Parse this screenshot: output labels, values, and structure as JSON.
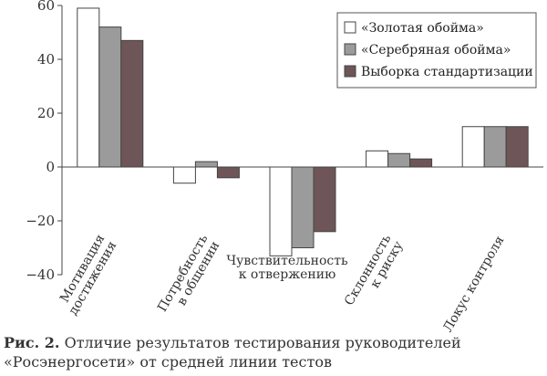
{
  "chart_data": {
    "type": "bar",
    "categories": [
      [
        "Мотивация",
        "достижения"
      ],
      [
        "Потребность",
        "в общении"
      ],
      [
        "Чувствительность",
        "к отвержению"
      ],
      [
        "Склонность",
        "к риску"
      ],
      [
        "Локус контроля"
      ]
    ],
    "series": [
      {
        "name": "«Золотая обойма»",
        "values": [
          59,
          -6,
          -33,
          6,
          15
        ],
        "color": "#ffffff"
      },
      {
        "name": "«Серебряная обойма»",
        "values": [
          52,
          2,
          -30,
          5,
          15
        ],
        "color": "#9b9b9b"
      },
      {
        "name": "Выборка стандартизации",
        "values": [
          47,
          -4,
          -24,
          3,
          15
        ],
        "color": "#6e5557"
      }
    ],
    "ylim": [
      -40,
      60
    ],
    "yticks": [
      60,
      40,
      20,
      0,
      -20,
      -40
    ],
    "ytick_labels": [
      "60",
      "40",
      "20",
      "0",
      "−20",
      "−40"
    ],
    "legend_position": "top-right"
  },
  "caption": {
    "label": "Рис. 2.",
    "text": " Отличие результатов тестирования руководителей «Росэнергосети» от средней линии тестов"
  }
}
